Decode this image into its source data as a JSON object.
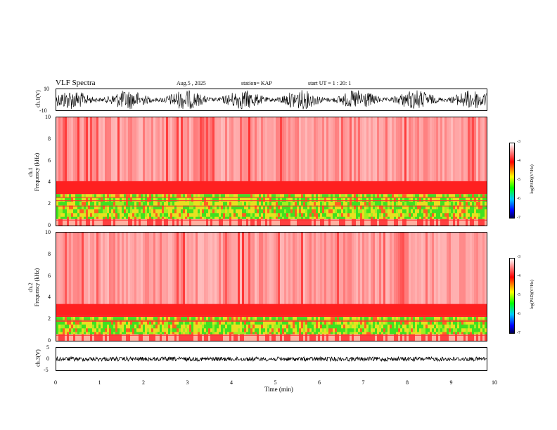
{
  "header": {
    "title": "VLF Spectra",
    "date": "Aug.5 , 2025",
    "station": "station= KAP",
    "start": "start UT = 1 : 20: 1"
  },
  "chart_data": [
    {
      "type": "line",
      "panel": "ch1-waveform",
      "ylabel": "ch.1(V)",
      "ylim": [
        -10,
        10
      ],
      "yticks": [
        "10",
        "-10"
      ],
      "xlim": [
        0,
        10
      ]
    },
    {
      "type": "heatmap",
      "panel": "ch1-spectrogram",
      "ylabel_line1": "ch.1",
      "ylabel_line2": "Frequency (kHz)",
      "ylim": [
        0,
        10
      ],
      "yticks": [
        "10",
        "8",
        "6",
        "4",
        "2",
        "0"
      ],
      "colorbar": {
        "label": "log(PSD)(V²/Hz)",
        "ticks": [
          "-3",
          "-4",
          "-5",
          "-6",
          "-7"
        ],
        "range": [
          -7,
          -3
        ]
      }
    },
    {
      "type": "heatmap",
      "panel": "ch2-spectrogram",
      "ylabel_line1": "ch.2",
      "ylabel_line2": "Frequency (kHz)",
      "ylim": [
        0,
        10
      ],
      "yticks": [
        "10",
        "8",
        "6",
        "4",
        "2",
        "0"
      ],
      "colorbar": {
        "label": "log(PSD)(V²/Hz)",
        "ticks": [
          "-3",
          "-4",
          "-5",
          "-6",
          "-7"
        ],
        "range": [
          -7,
          -3
        ]
      }
    },
    {
      "type": "line",
      "panel": "ch3-waveform",
      "ylabel": "ch.3(V)",
      "ylim": [
        -5,
        5
      ],
      "yticks": [
        "5",
        "0",
        "-5"
      ]
    }
  ],
  "xaxis": {
    "label": "Time (min)",
    "ticks": [
      "0",
      "1",
      "2",
      "3",
      "4",
      "5",
      "6",
      "7",
      "8",
      "9",
      "10"
    ]
  }
}
